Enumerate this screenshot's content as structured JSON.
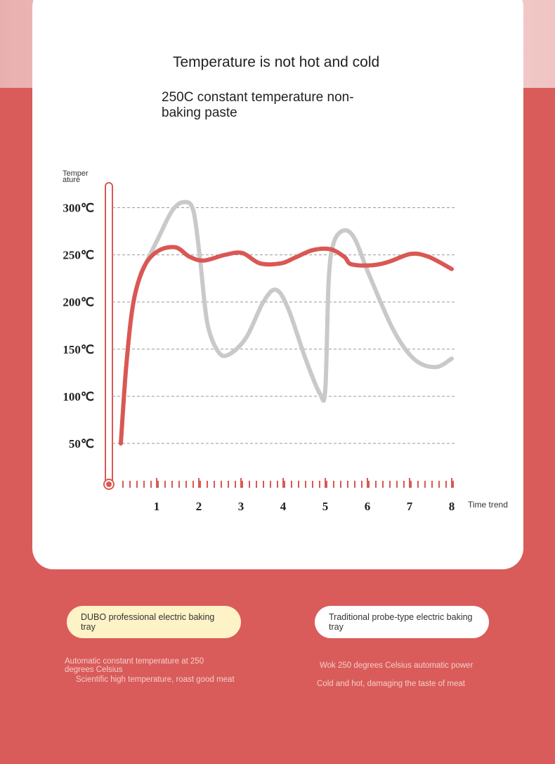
{
  "chart_data": {
    "type": "line",
    "title": "Temperature is not hot and cold",
    "subtitle": "250C constant temperature non-baking paste",
    "y_label": "Temper ature",
    "x_label": "Time trend",
    "xlim": [
      0,
      8
    ],
    "xticks": [
      1,
      2,
      3,
      4,
      5,
      6,
      7,
      8
    ],
    "ylim": [
      0,
      325
    ],
    "yticks": [
      {
        "value": 50,
        "label": "50℃"
      },
      {
        "value": 100,
        "label": "100℃"
      },
      {
        "value": 150,
        "label": "150℃"
      },
      {
        "value": 200,
        "label": "200℃"
      },
      {
        "value": 250,
        "label": "250℃"
      },
      {
        "value": 300,
        "label": "300℃"
      }
    ],
    "grid": true,
    "series": [
      {
        "name": "Traditional probe-type electric baking tray",
        "color": "#c9c9c9",
        "x": [
          0.62,
          1.03,
          1.37,
          1.65,
          1.87,
          2.03,
          2.2,
          2.45,
          2.7,
          3.12,
          3.53,
          3.83,
          4.12,
          4.53,
          4.87,
          5.0,
          5.08,
          5.2,
          5.45,
          5.7,
          6.03,
          6.62,
          7.12,
          7.62,
          8.0
        ],
        "values": [
          230,
          267,
          297,
          306,
          297,
          245,
          178,
          148,
          144,
          162,
          200,
          213,
          193,
          140,
          103,
          107,
          222,
          263,
          276,
          267,
          230,
          170,
          139,
          131,
          140
        ]
      },
      {
        "name": "DUBO professional electric baking tray",
        "color": "#d95854",
        "x": [
          0.15,
          0.28,
          0.45,
          0.7,
          1.03,
          1.45,
          1.78,
          2.12,
          2.62,
          3.03,
          3.45,
          3.95,
          4.28,
          4.7,
          5.12,
          5.45,
          5.62,
          6.12,
          6.53,
          7.03,
          7.45,
          8.0
        ],
        "values": [
          50,
          133,
          200,
          237,
          254,
          258,
          248,
          244,
          250,
          252,
          241,
          241,
          247,
          255,
          256,
          248,
          240,
          239,
          243,
          251,
          248,
          235
        ]
      }
    ]
  },
  "legend_notes": [
    [
      "Wok 250 degrees Celsius automatic power",
      "Cold and hot, damaging the taste of meat"
    ],
    [
      "Automatic constant temperature at 250 degrees Celsius",
      "Scientific high temperature, roast good meat"
    ]
  ]
}
